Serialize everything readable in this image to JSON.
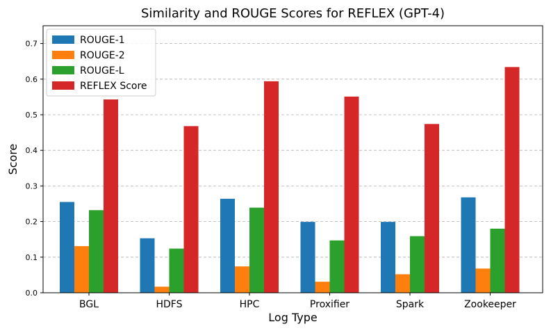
{
  "chart_data": {
    "type": "bar",
    "title": "Similarity and ROUGE Scores for REFLEX (GPT-4)",
    "xlabel": "Log Type",
    "ylabel": "Score",
    "ylim": [
      0,
      0.75
    ],
    "yticks": [
      "0.0",
      "0.1",
      "0.2",
      "0.3",
      "0.4",
      "0.5",
      "0.6",
      "0.7"
    ],
    "grid": "horizontal dashed",
    "legend_position": "top-left",
    "categories": [
      "BGL",
      "HDFS",
      "HPC",
      "Proxifier",
      "Spark",
      "Zookeeper"
    ],
    "series": [
      {
        "name": "ROUGE-1",
        "color": "#1f77b4",
        "values": [
          0.255,
          0.153,
          0.264,
          0.199,
          0.199,
          0.268
        ]
      },
      {
        "name": "ROUGE-2",
        "color": "#ff7f0e",
        "values": [
          0.131,
          0.017,
          0.074,
          0.031,
          0.052,
          0.068
        ]
      },
      {
        "name": "ROUGE-L",
        "color": "#2ca02c",
        "values": [
          0.232,
          0.124,
          0.239,
          0.147,
          0.159,
          0.18
        ]
      },
      {
        "name": "REFLEX Score",
        "color": "#d62728",
        "values": [
          0.543,
          0.468,
          0.594,
          0.551,
          0.474,
          0.634
        ]
      }
    ]
  }
}
